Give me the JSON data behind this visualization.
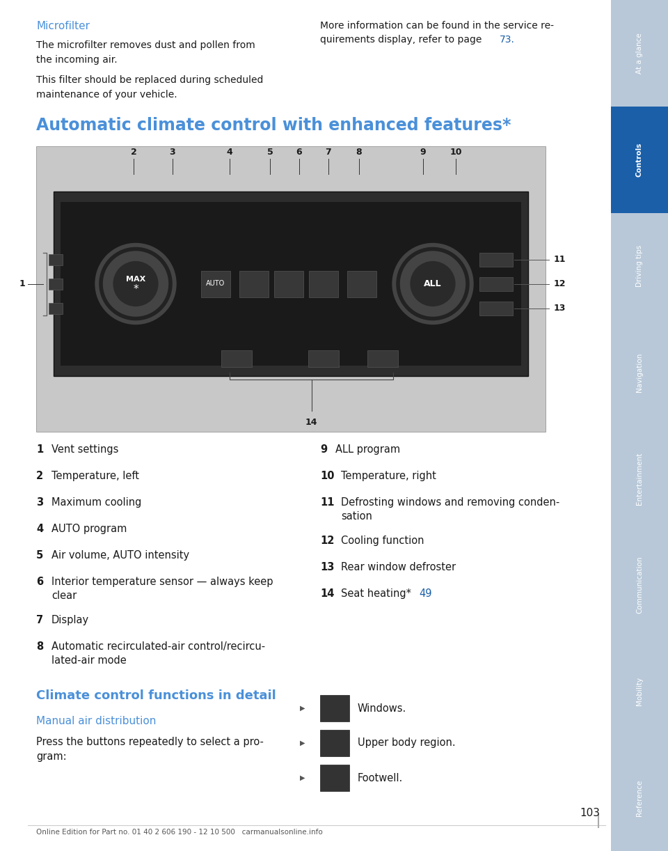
{
  "page_bg": "#ffffff",
  "sidebar_bg": "#b8c8d8",
  "sidebar_active_bg": "#1a5fa8",
  "sidebar_items": [
    "At a glance",
    "Controls",
    "Driving tips",
    "Navigation",
    "Entertainment",
    "Communication",
    "Mobility",
    "Reference"
  ],
  "sidebar_active": "Controls",
  "title_color": "#4a90d9",
  "body_color": "#1a1a1a",
  "link_color": "#1a5fa8",
  "section_title": "Microfilter",
  "section_text_left_1": "The microfilter removes dust and pollen from\nthe incoming air.",
  "section_text_left_2": "This filter should be replaced during scheduled\nmaintenance of your vehicle.",
  "section_text_right_1": "More information can be found in the service re-",
  "section_text_right_2": "quirements display, refer to page ",
  "section_link": "73",
  "section_link_after": ".",
  "main_title": "Automatic climate control with enhanced features*",
  "numbered_items_left": [
    [
      "1",
      "Vent settings"
    ],
    [
      "2",
      "Temperature, left"
    ],
    [
      "3",
      "Maximum cooling"
    ],
    [
      "4",
      "AUTO program"
    ],
    [
      "5",
      "Air volume, AUTO intensity"
    ],
    [
      "6",
      "Interior temperature sensor — always keep\nclear"
    ],
    [
      "7",
      "Display"
    ],
    [
      "8",
      "Automatic recirculated-air control/recircu-\nlated-air mode"
    ]
  ],
  "numbered_items_right": [
    [
      "9",
      "ALL program"
    ],
    [
      "10",
      "Temperature, right"
    ],
    [
      "11",
      "Defrosting windows and removing conden-\nsation"
    ],
    [
      "12",
      "Cooling function"
    ],
    [
      "13",
      "Rear window defroster"
    ],
    [
      "14",
      "Seat heating*   "
    ]
  ],
  "item14_link": "49",
  "climate_section_title": "Climate control functions in detail",
  "manual_air_title": "Manual air distribution",
  "manual_air_text": "Press the buttons repeatedly to select a pro-\ngram:",
  "bullet_items": [
    "Windows.",
    "Upper body region.",
    "Footwell."
  ],
  "footer_text": "Online Edition for Part no. 01 40 2 606 190 - 12 10 500   carmanualsonline.info",
  "page_number": "103"
}
